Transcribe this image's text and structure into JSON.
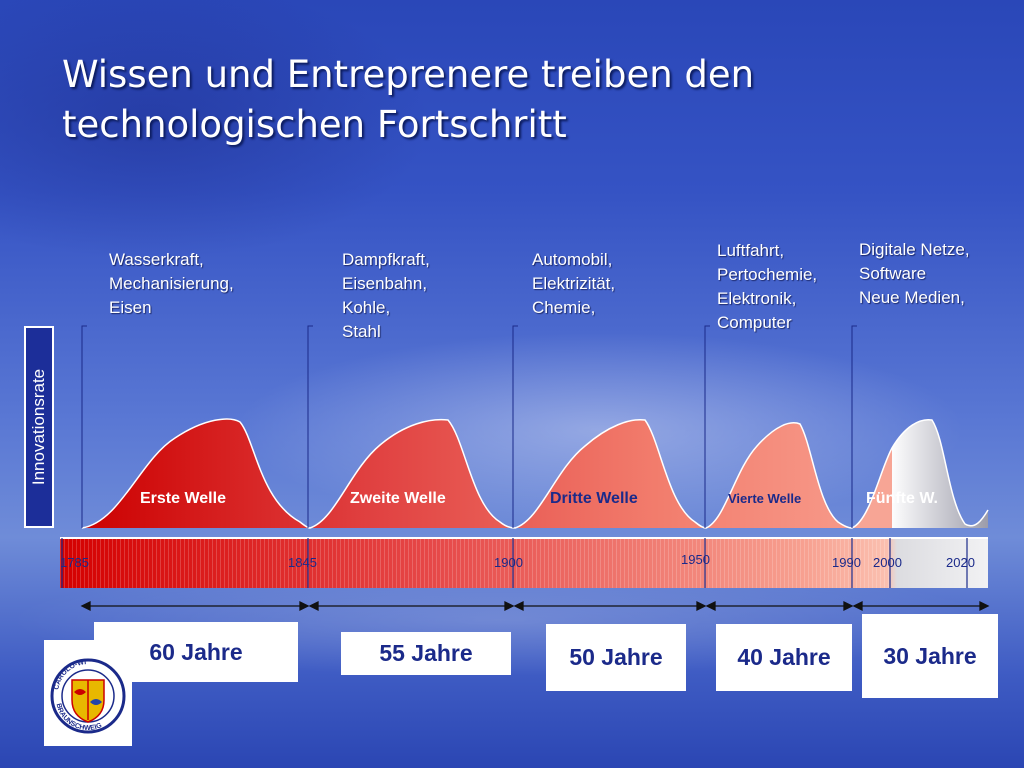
{
  "title": "Wissen und Entreprenere treiben den\ntechnologischen Fortschritt",
  "y_axis_label": "Innovationsrate",
  "eras": [
    {
      "label": "Wasserkraft,\nMechanisierung,\nEisen",
      "wave": "Erste Welle",
      "period": "60 Jahre"
    },
    {
      "label": "Dampfkraft,\nEisenbahn,\nKohle,\nStahl",
      "wave": "Zweite Welle",
      "period": "55 Jahre"
    },
    {
      "label": "Automobil,\nElektrizität,\nChemie,",
      "wave": "Dritte Welle",
      "period": "50 Jahre"
    },
    {
      "label": "Luftfahrt,\nPertochemie,\nElektronik,\nComputer",
      "wave": "Vierte Welle",
      "period": "40 Jahre"
    },
    {
      "label": "Digitale Netze,\nSoftware\nNeue Medien,",
      "wave": "Fünfte W.",
      "period": "30 Jahre"
    }
  ],
  "years": [
    "1785",
    "1845",
    "1900",
    "1950",
    "1990",
    "2000",
    "2020"
  ],
  "logo": {
    "text_top": "CAROLO-WI",
    "text_bottom": "BRAUNSCHWEIG"
  },
  "colors": {
    "wave_dark": "#cc0000",
    "wave_light": "#f08070",
    "fifth_wave": "#d8d8dc",
    "label_blue": "#1b2a8a"
  }
}
